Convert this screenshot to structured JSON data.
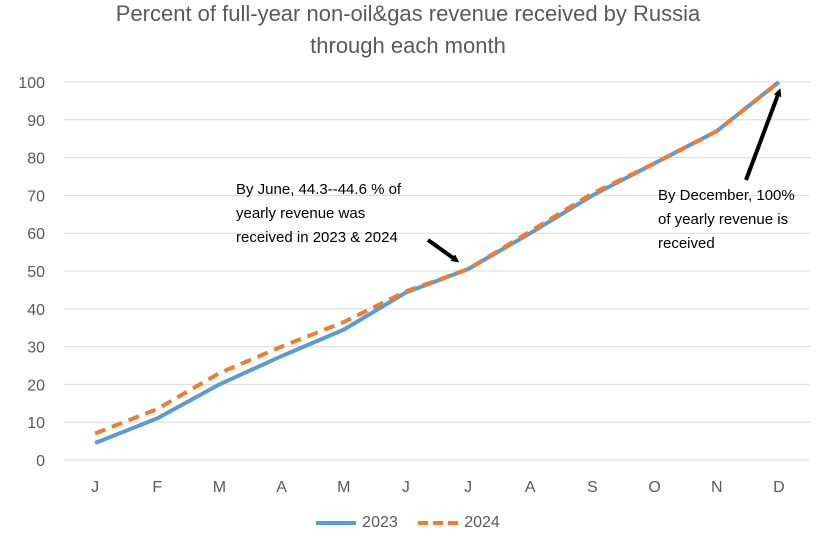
{
  "chart_data": {
    "type": "line",
    "title": [
      "Percent of full-year non-oil&gas revenue received by Russia",
      "through each month"
    ],
    "categories": [
      "J",
      "F",
      "M",
      "A",
      "M",
      "J",
      "J",
      "A",
      "S",
      "O",
      "N",
      "D"
    ],
    "ylim": [
      0,
      100
    ],
    "yticks": [
      0,
      10,
      20,
      30,
      40,
      50,
      60,
      70,
      80,
      90,
      100
    ],
    "grid": true,
    "legend_position": "bottom",
    "series": [
      {
        "name": "2023",
        "color": "#5B9BD5",
        "style": "solid",
        "values": [
          4.5,
          11,
          20,
          27.5,
          34.5,
          44.3,
          50.5,
          60,
          70,
          78.5,
          87,
          100
        ]
      },
      {
        "name": "2024",
        "color": "#ED7D31",
        "style": "dashed",
        "values": [
          7,
          13.5,
          23,
          30,
          36.5,
          44.6,
          50.5,
          60.5,
          70.5,
          78.5,
          87,
          100
        ]
      }
    ],
    "annotations": [
      {
        "id": "june",
        "lines": [
          "By June, 44.3--44.6 % of",
          "yearly revenue was",
          "received in 2023 & 2024"
        ]
      },
      {
        "id": "december",
        "lines": [
          "By December, 100%",
          "of yearly revenue is",
          "received"
        ]
      }
    ]
  }
}
